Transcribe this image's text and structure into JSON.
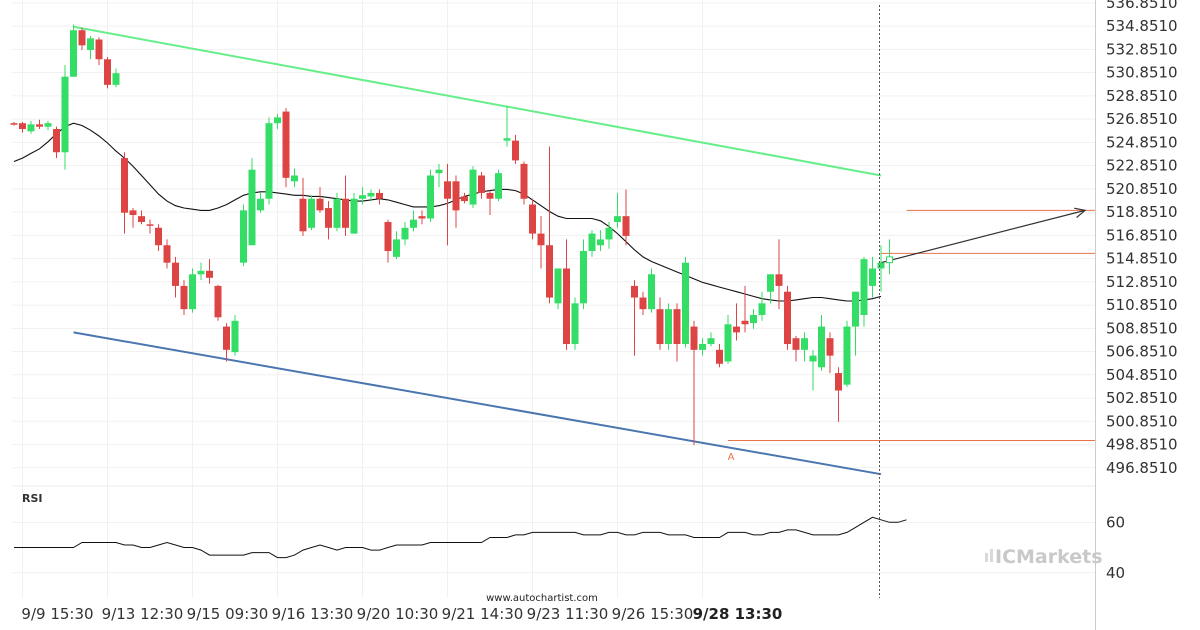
{
  "chart_data": {
    "type": "candlestick",
    "title": "",
    "ylabel": "",
    "ylim": [
      495.8,
      537.1
    ],
    "y_tick_labels": [
      "536.8510",
      "534.8510",
      "532.8510",
      "530.8510",
      "528.8510",
      "526.8510",
      "524.8510",
      "522.8510",
      "520.8510",
      "518.8510",
      "516.8510",
      "514.8510",
      "512.8510",
      "510.8510",
      "508.8510",
      "506.8510",
      "504.8510",
      "502.8510",
      "500.8510",
      "498.8510",
      "496.8510"
    ],
    "x_tick_labels": [
      "9/9 15:30",
      "9/13 12:30",
      "9/15 09:30",
      "9/16 13:30",
      "9/20 10:30",
      "9/21 14:30",
      "9/23 11:30",
      "9/26 15:30",
      "9/28 13:30"
    ],
    "x_tick_bar_index": [
      1,
      11,
      21,
      31,
      41,
      51,
      61,
      71,
      81
    ],
    "highlighted_x_tick": "9/28 13:30",
    "candles": [
      [
        526.5,
        526.6,
        526.3,
        526.4
      ],
      [
        526.5,
        526.6,
        525.7,
        526.0
      ],
      [
        525.8,
        526.7,
        525.6,
        526.4
      ],
      [
        526.4,
        526.8,
        526.0,
        526.2
      ],
      [
        526.2,
        526.7,
        525.9,
        526.5
      ],
      [
        526.0,
        526.2,
        523.5,
        524.0
      ],
      [
        524.0,
        531.5,
        522.5,
        530.5
      ],
      [
        530.5,
        535.0,
        530.5,
        534.5
      ],
      [
        534.5,
        534.7,
        532.8,
        533.2
      ],
      [
        532.8,
        534.0,
        532.0,
        533.8
      ],
      [
        533.7,
        533.9,
        531.5,
        532.0
      ],
      [
        532.0,
        532.2,
        529.5,
        529.8
      ],
      [
        529.8,
        531.2,
        529.6,
        530.8
      ],
      [
        523.5,
        524.0,
        517.0,
        518.8
      ],
      [
        519.0,
        519.2,
        517.5,
        518.6
      ],
      [
        518.5,
        519.0,
        517.8,
        518.0
      ],
      [
        517.8,
        518.2,
        517.0,
        517.7
      ],
      [
        517.5,
        517.8,
        515.5,
        516.0
      ],
      [
        516.0,
        516.5,
        514.0,
        514.5
      ],
      [
        514.5,
        515.0,
        511.5,
        512.5
      ],
      [
        512.5,
        513.0,
        510.0,
        510.5
      ],
      [
        510.5,
        514.0,
        510.2,
        513.5
      ],
      [
        513.5,
        514.5,
        513.0,
        513.8
      ],
      [
        513.8,
        514.8,
        512.7,
        513.2
      ],
      [
        512.5,
        512.6,
        509.5,
        509.8
      ],
      [
        509.0,
        509.3,
        506.0,
        507.0
      ],
      [
        506.8,
        510.0,
        506.5,
        509.5
      ],
      [
        514.5,
        519.5,
        514.2,
        519.0
      ],
      [
        516.0,
        523.5,
        516.0,
        522.5
      ],
      [
        519.0,
        520.5,
        518.8,
        520.0
      ],
      [
        520.0,
        527.0,
        519.5,
        526.5
      ],
      [
        526.5,
        527.3,
        526.0,
        527.0
      ],
      [
        527.5,
        527.8,
        521.0,
        521.8
      ],
      [
        521.5,
        522.6,
        521.0,
        522.0
      ],
      [
        520.0,
        521.8,
        516.8,
        517.2
      ],
      [
        517.5,
        520.3,
        517.3,
        520.0
      ],
      [
        520.0,
        521.0,
        518.8,
        519.0
      ],
      [
        519.2,
        519.8,
        516.5,
        517.5
      ],
      [
        517.5,
        520.5,
        517.2,
        520.0
      ],
      [
        520.0,
        522.0,
        516.8,
        517.5
      ],
      [
        517.0,
        520.5,
        517.0,
        520.0
      ],
      [
        520.0,
        521.0,
        519.5,
        520.3
      ],
      [
        520.2,
        520.8,
        519.8,
        520.5
      ],
      [
        520.5,
        520.8,
        519.5,
        520.0
      ],
      [
        518.0,
        518.2,
        514.5,
        515.5
      ],
      [
        515.0,
        517.2,
        514.8,
        516.5
      ],
      [
        516.5,
        518.0,
        516.0,
        517.5
      ],
      [
        517.5,
        519.0,
        517.2,
        518.2
      ],
      [
        518.5,
        519.0,
        517.8,
        518.3
      ],
      [
        518.3,
        522.5,
        518.0,
        522.0
      ],
      [
        522.2,
        523.0,
        521.0,
        522.5
      ],
      [
        521.5,
        523.0,
        516.0,
        520.0
      ],
      [
        521.5,
        522.0,
        517.5,
        519.0
      ],
      [
        520.2,
        520.5,
        519.6,
        519.8
      ],
      [
        519.5,
        522.8,
        519.2,
        522.5
      ],
      [
        522.0,
        522.3,
        520.0,
        520.5
      ],
      [
        520.5,
        520.7,
        518.6,
        520.0
      ],
      [
        520.0,
        522.5,
        519.8,
        522.2
      ],
      [
        525.0,
        528.0,
        524.5,
        525.2
      ],
      [
        525.0,
        525.5,
        523.0,
        523.3
      ],
      [
        523.0,
        523.2,
        519.5,
        520.0
      ],
      [
        519.5,
        520.0,
        516.5,
        517.0
      ],
      [
        517.0,
        518.5,
        514.0,
        516.0
      ],
      [
        516.0,
        524.5,
        511.0,
        511.5
      ],
      [
        511.0,
        514.0,
        510.5,
        514.0
      ],
      [
        514.0,
        516.5,
        507.0,
        507.5
      ],
      [
        507.5,
        511.5,
        507.0,
        511.0
      ],
      [
        511.0,
        516.5,
        510.5,
        515.5
      ],
      [
        515.5,
        517.3,
        515.0,
        517.0
      ],
      [
        516.0,
        517.3,
        515.5,
        516.5
      ],
      [
        516.5,
        518.0,
        515.7,
        517.5
      ],
      [
        518.0,
        520.5,
        517.5,
        518.5
      ],
      [
        518.5,
        520.8,
        516.0,
        516.8
      ],
      [
        512.5,
        513.0,
        506.5,
        511.5
      ],
      [
        511.5,
        512.0,
        510.0,
        510.5
      ],
      [
        510.5,
        514.0,
        510.2,
        513.5
      ],
      [
        510.5,
        511.5,
        507.0,
        507.5
      ],
      [
        507.5,
        511.0,
        507.0,
        510.5
      ],
      [
        510.5,
        511.0,
        506.0,
        507.5
      ],
      [
        507.5,
        515.0,
        507.2,
        514.5
      ],
      [
        509.0,
        509.5,
        498.8,
        507.0
      ],
      [
        507.0,
        508.0,
        506.5,
        507.5
      ],
      [
        507.5,
        508.5,
        507.3,
        508.0
      ],
      [
        507.0,
        507.5,
        505.5,
        505.8
      ],
      [
        506.0,
        510.0,
        505.8,
        509.2
      ],
      [
        509.0,
        511.0,
        507.8,
        508.5
      ],
      [
        509.5,
        512.5,
        508.5,
        509.2
      ],
      [
        509.3,
        510.5,
        508.8,
        510.0
      ],
      [
        510.0,
        512.0,
        509.5,
        511.0
      ],
      [
        512.0,
        513.5,
        511.0,
        513.5
      ],
      [
        513.5,
        516.5,
        510.5,
        512.5
      ],
      [
        512.0,
        512.5,
        507.0,
        507.5
      ],
      [
        508.0,
        508.2,
        506.0,
        507.0
      ],
      [
        507.0,
        508.5,
        506.0,
        508.0
      ],
      [
        506.0,
        507.0,
        503.5,
        506.5
      ],
      [
        505.5,
        510.0,
        505.2,
        509.0
      ],
      [
        508.0,
        508.5,
        505.0,
        506.5
      ],
      [
        505.0,
        505.5,
        500.8,
        503.5
      ],
      [
        504.0,
        509.5,
        503.8,
        509.0
      ],
      [
        509.0,
        512.0,
        506.5,
        512.0
      ],
      [
        510.0,
        515.0,
        509.0,
        514.8
      ],
      [
        512.5,
        515.0,
        511.5,
        514.0
      ],
      [
        514.0,
        516.0,
        512.0,
        514.5
      ],
      [
        514.5,
        516.5,
        513.5,
        515.0
      ]
    ],
    "candle_colors": {
      "bullish": "#33dd66",
      "bearish": "#dd4444"
    },
    "moving_average": [
      523.2,
      523.5,
      523.9,
      524.3,
      524.9,
      525.6,
      526.2,
      526.5,
      526.3,
      525.9,
      525.4,
      524.8,
      524.1,
      523.5,
      522.8,
      522.0,
      521.2,
      520.4,
      519.8,
      519.4,
      519.2,
      519.1,
      519.0,
      519.0,
      519.2,
      519.5,
      519.9,
      520.3,
      520.5,
      520.6,
      520.6,
      520.5,
      520.4,
      520.3,
      520.3,
      520.2,
      520.2,
      520.1,
      520.0,
      519.9,
      519.8,
      519.8,
      519.9,
      520.0,
      519.9,
      519.7,
      519.5,
      519.3,
      519.3,
      519.3,
      519.4,
      519.6,
      519.9,
      520.2,
      520.4,
      520.6,
      520.7,
      520.8,
      520.8,
      520.7,
      520.4,
      519.9,
      519.4,
      518.9,
      518.5,
      518.3,
      518.3,
      518.3,
      518.3,
      518.1,
      517.6,
      517.0,
      516.3,
      515.6,
      515.0,
      514.6,
      514.3,
      514.0,
      513.7,
      513.4,
      513.1,
      512.8,
      512.6,
      512.4,
      512.2,
      512.0,
      511.8,
      511.6,
      511.4,
      511.3,
      511.2,
      511.2,
      511.3,
      511.4,
      511.5,
      511.5,
      511.4,
      511.3,
      511.2,
      511.2,
      511.3,
      511.4,
      511.6
    ],
    "resistance_line": {
      "from": [
        7,
        534.8
      ],
      "to": [
        102,
        522.0
      ],
      "color": "#66ee88"
    },
    "support_line": {
      "from": [
        7,
        508.5
      ],
      "to": [
        102,
        496.3
      ],
      "color": "#4a76b0"
    },
    "horizontal_levels": [
      {
        "y": 515.3,
        "from_bar": 102,
        "color": "#e8734a"
      },
      {
        "y": 499.2,
        "from_bar": 84,
        "color": "#e8734a"
      },
      {
        "y": 519.0,
        "from_bar": 105,
        "color": "#e8734a"
      }
    ],
    "projection_arrow": {
      "from": [
        102,
        514.5
      ],
      "to": [
        126,
        519.0
      ],
      "color": "#333333"
    },
    "point_label": {
      "text": "A",
      "bar": 84,
      "y": 498.4
    },
    "current_time_bar": 102,
    "rsi": {
      "label": "RSI",
      "tick_labels": [
        "60",
        "40"
      ],
      "ylim": [
        30,
        74
      ],
      "levels": [
        60,
        40
      ],
      "values": [
        50,
        50,
        50,
        50,
        50,
        50,
        50,
        50,
        52,
        52,
        52,
        52,
        52,
        51,
        51,
        50,
        50,
        51,
        52,
        51,
        50,
        50,
        49,
        47,
        47,
        47,
        47,
        47,
        48,
        48,
        48,
        46,
        46,
        47,
        49,
        50,
        51,
        50,
        49,
        50,
        50,
        50,
        49,
        49,
        50,
        51,
        51,
        51,
        51,
        52,
        52,
        52,
        52,
        52,
        52,
        52,
        54,
        54,
        54,
        55,
        55,
        56,
        56,
        56,
        56,
        56,
        56,
        55,
        55,
        55,
        56,
        56,
        55,
        55,
        56,
        56,
        56,
        55,
        55,
        55,
        54,
        54,
        54,
        54,
        56,
        56,
        56,
        55,
        55,
        56,
        56,
        57,
        57,
        56,
        55,
        55,
        55,
        55,
        56,
        58,
        60,
        62,
        61,
        60,
        60,
        61
      ]
    },
    "watermark": "www.autochartist.com",
    "brand_logo_text": "ICMarkets"
  }
}
